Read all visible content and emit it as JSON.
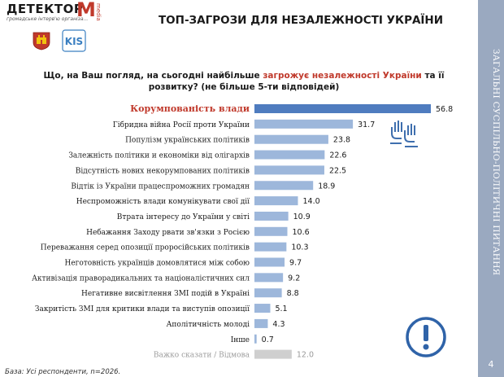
{
  "header": {
    "logo_text": "ДЕТЕКТОР",
    "logo_m": "M",
    "logo_media": "media",
    "logo_sub": "громадське інтерв'ю   організа..."
  },
  "title": "ТОП-ЗАГРОЗИ ДЛЯ НЕЗАЛЕЖНОСТІ УКРАЇНИ",
  "question": {
    "part1": "Що, на Ваш погляд, на сьогодні найбільше ",
    "highlight": "загрожує незалежності України",
    "part2": " та її",
    "line2": "розвитку? (не більше 5-ти відповідей)"
  },
  "sidebar": {
    "title": "ЗАГАЛЬНІ СУСПІЛЬНО-ПОЛІТИЧНІ ПИТАННЯ",
    "page": "4"
  },
  "footnote": "База: Усі респонденти, n=2026.",
  "colors": {
    "top_bar": "#4f7cbf",
    "bar": "#9db7db",
    "muted_bar": "#cfcfcf",
    "highlight": "#c0392b",
    "sidebar": "#9aa9c0"
  },
  "chart_data": {
    "type": "bar",
    "orientation": "horizontal",
    "categories": [
      "Корумпованість влади",
      "Гібридна війна Росії проти України",
      "Популізм українських політиків",
      "Залежність політики и економіки від олігархів",
      "Відсутність нових некорумпованих політиків",
      "Відтік із України працеспроможних громадян",
      "Неспроможність влади комунікувати свої дії",
      "Втрата інтересу до України у світі",
      "Небажання Заходу рвати зв'язки з Росією",
      "Переважання серед опозиції проросійських політиків",
      "Неготовність українців домовлятися між собою",
      "Активізація праворадикальних та націоналістичних сил",
      "Негативне висвітлення ЗМІ подій в Україні",
      "Закритість ЗМІ для критики влади та виступів опозиції",
      "Аполітичність молоді",
      "Інше",
      "Важко сказати / Відмова"
    ],
    "values": [
      56.8,
      31.7,
      23.8,
      22.6,
      22.5,
      18.9,
      14.0,
      10.9,
      10.6,
      10.3,
      9.7,
      9.2,
      8.8,
      5.1,
      4.3,
      0.7,
      12.0
    ],
    "labels": [
      "56.8",
      "31.7",
      "23.8",
      "22.6",
      "22.5",
      "18.9",
      "14.0",
      "10.9",
      "10.6",
      "10.3",
      "9.7",
      "9.2",
      "8.8",
      "5.1",
      "4.3",
      "0.7",
      "12.0"
    ],
    "xlim": [
      0,
      60
    ]
  }
}
